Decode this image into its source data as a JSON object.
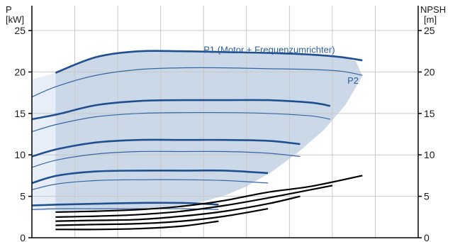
{
  "chart_data": {
    "type": "line",
    "title": "",
    "left_axis": {
      "label": "P",
      "unit": "[kW]",
      "ticks": [
        0,
        5,
        10,
        15,
        20,
        25
      ],
      "range": [
        0,
        28
      ]
    },
    "right_axis": {
      "label": "NPSH",
      "unit": "[m]",
      "ticks": [
        0,
        5,
        10,
        15,
        20,
        25
      ],
      "range": [
        0,
        28
      ]
    },
    "x_axis": {
      "range": [
        0,
        9
      ],
      "grid_divisions": 9,
      "tick_labels": []
    },
    "grid": true,
    "colors": {
      "strong": "#1f4f8f",
      "thin": "#3566a3",
      "npsh": "#000000",
      "envelope_fill": "#cad8e8",
      "edge_fill": "#e7eef7",
      "grid": "#c8c8c8",
      "annot": "#2c5f9e"
    },
    "envelope": {
      "x": [
        0.55,
        1.5,
        2.5,
        3.5,
        4.5,
        5.5,
        6.5,
        7.2,
        7.55,
        7.7,
        7.3,
        6.8,
        6.2,
        5.6,
        5.0,
        4.5,
        4.0,
        3.4,
        2.8,
        2.0,
        1.2,
        0.55
      ],
      "y": [
        19.9,
        21.8,
        22.5,
        22.5,
        22.4,
        22.3,
        22.1,
        21.8,
        21.3,
        19.5,
        16.0,
        13.0,
        10.3,
        8.0,
        6.2,
        5.1,
        4.4,
        3.9,
        3.6,
        3.4,
        3.3,
        3.3
      ]
    },
    "edge_band": {
      "x": [
        0.0,
        0.55,
        0.55,
        0.0
      ],
      "y": [
        19.1,
        19.9,
        3.3,
        3.3
      ]
    },
    "p1_curves": [
      {
        "x": [
          0.55,
          1.5,
          2.5,
          3.5,
          4.5,
          5.5,
          6.5,
          7.2,
          7.7
        ],
        "y": [
          19.9,
          21.8,
          22.5,
          22.5,
          22.4,
          22.3,
          22.1,
          21.8,
          21.4
        ]
      },
      {
        "x": [
          0.0,
          0.6,
          1.5,
          2.5,
          3.5,
          4.5,
          5.5,
          6.5,
          6.95
        ],
        "y": [
          14.3,
          14.9,
          16.0,
          16.5,
          16.6,
          16.6,
          16.6,
          16.3,
          15.9
        ]
      },
      {
        "x": [
          0.0,
          0.6,
          1.5,
          2.5,
          3.5,
          4.5,
          5.5,
          6.25
        ],
        "y": [
          9.8,
          10.7,
          11.5,
          11.8,
          11.8,
          11.8,
          11.7,
          11.3
        ]
      },
      {
        "x": [
          0.0,
          0.6,
          1.5,
          2.5,
          3.5,
          4.5,
          5.5
        ],
        "y": [
          6.6,
          7.5,
          8.0,
          8.1,
          8.1,
          8.1,
          7.8
        ]
      },
      {
        "x": [
          0.0,
          0.6,
          1.5,
          2.5,
          3.5,
          4.35
        ],
        "y": [
          3.9,
          4.0,
          4.1,
          4.2,
          4.2,
          4.0
        ]
      }
    ],
    "p2_curves": [
      {
        "x": [
          0.0,
          0.6,
          1.5,
          2.5,
          3.5,
          4.5,
          5.5,
          6.5,
          7.2,
          7.7
        ],
        "y": [
          17.0,
          18.3,
          19.6,
          20.3,
          20.5,
          20.5,
          20.4,
          20.3,
          20.1,
          19.6
        ]
      },
      {
        "x": [
          0.0,
          0.6,
          1.5,
          2.5,
          3.5,
          4.5,
          5.5,
          6.5,
          6.95
        ],
        "y": [
          12.8,
          13.7,
          14.6,
          15.0,
          15.1,
          15.1,
          15.0,
          14.7,
          14.3
        ]
      },
      {
        "x": [
          0.0,
          0.6,
          1.5,
          2.5,
          3.5,
          4.5,
          5.5,
          6.25
        ],
        "y": [
          8.5,
          9.4,
          10.1,
          10.4,
          10.4,
          10.4,
          10.2,
          9.8
        ]
      },
      {
        "x": [
          0.0,
          0.6,
          1.5,
          2.5,
          3.5,
          4.5,
          5.5
        ],
        "y": [
          5.8,
          6.5,
          6.9,
          7.0,
          7.0,
          6.9,
          6.6
        ]
      },
      {
        "x": [
          0.0,
          0.6,
          1.5,
          2.5,
          3.5,
          4.35
        ],
        "y": [
          3.4,
          3.5,
          3.5,
          3.5,
          3.5,
          3.4
        ]
      }
    ],
    "npsh_curves": [
      {
        "x": [
          0.55,
          1.5,
          2.5,
          3.5,
          4.5,
          5.5,
          6.5,
          7.7
        ],
        "y": [
          3.1,
          3.2,
          3.4,
          3.8,
          4.5,
          5.5,
          6.2,
          7.5
        ]
      },
      {
        "x": [
          0.55,
          1.5,
          2.5,
          3.5,
          4.5,
          5.5,
          6.5,
          7.0
        ],
        "y": [
          2.5,
          2.6,
          2.8,
          3.2,
          3.9,
          4.8,
          5.8,
          6.3
        ]
      },
      {
        "x": [
          0.55,
          1.5,
          2.5,
          3.5,
          4.5,
          5.5,
          6.25
        ],
        "y": [
          2.0,
          2.1,
          2.2,
          2.6,
          3.2,
          4.1,
          5.0
        ]
      },
      {
        "x": [
          0.55,
          1.5,
          2.5,
          3.5,
          4.5,
          5.5
        ],
        "y": [
          1.5,
          1.6,
          1.7,
          2.0,
          2.6,
          3.5
        ]
      },
      {
        "x": [
          0.55,
          1.5,
          2.5,
          3.5,
          4.35
        ],
        "y": [
          1.0,
          1.0,
          1.1,
          1.4,
          2.0
        ]
      }
    ],
    "labels": {
      "p1": {
        "text": "P1 (Motor + Frequenzumrichter)",
        "x": 4.0,
        "y": 22.3
      },
      "p2": {
        "text": "P2",
        "x": 7.35,
        "y": 18.6
      }
    }
  }
}
